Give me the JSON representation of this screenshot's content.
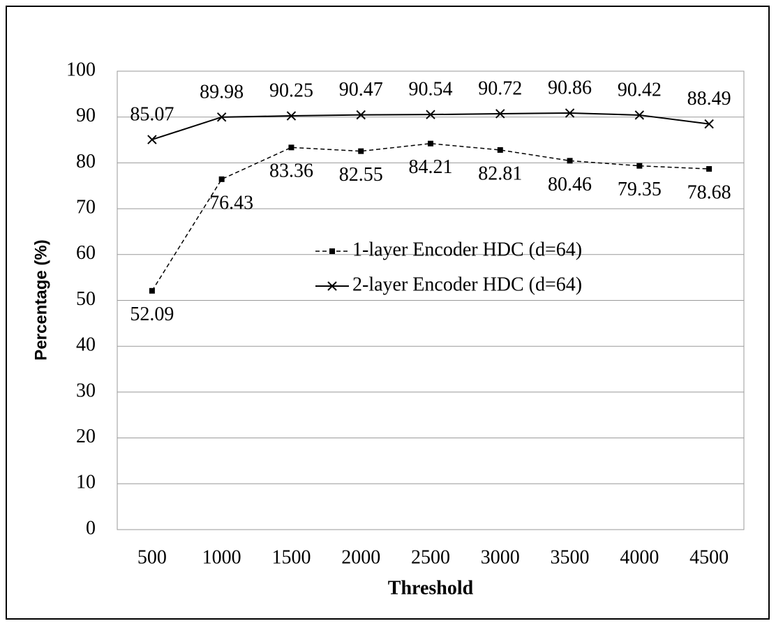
{
  "chart_data": {
    "type": "line",
    "x_label": "Threshold",
    "y_label": "Percentage (%)",
    "x": [
      500,
      1000,
      1500,
      2000,
      2500,
      3000,
      3500,
      4000,
      4500
    ],
    "xlim": [
      250,
      4750
    ],
    "xticks": [
      500,
      1000,
      1500,
      2000,
      2500,
      3000,
      3500,
      4000,
      4500
    ],
    "ylim": [
      0,
      100
    ],
    "yticks": [
      0,
      10,
      20,
      30,
      40,
      50,
      60,
      70,
      80,
      90,
      100
    ],
    "grid": true,
    "legend": "center",
    "series": [
      {
        "name": "1-layer Encoder HDC (d=64)",
        "color": "#000000",
        "dash": true,
        "marker": "square",
        "values": [
          52.09,
          76.43,
          83.36,
          82.55,
          84.21,
          82.81,
          80.46,
          79.35,
          78.68
        ]
      },
      {
        "name": "2-layer Encoder HDC (d=64)",
        "color": "#000000",
        "dash": false,
        "marker": "x",
        "values": [
          85.07,
          89.98,
          90.25,
          90.47,
          90.54,
          90.72,
          90.86,
          90.42,
          88.49
        ]
      }
    ]
  }
}
